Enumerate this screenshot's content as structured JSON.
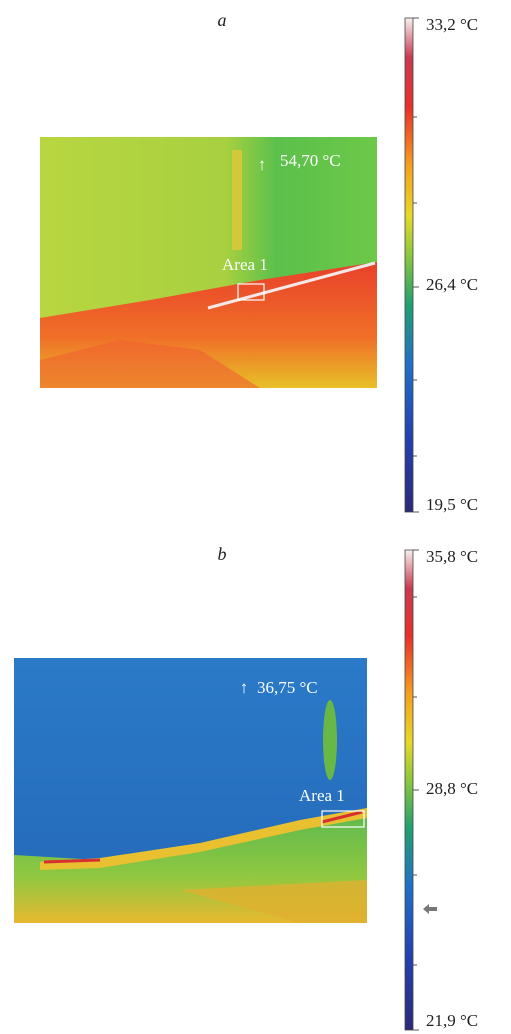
{
  "panels": [
    {
      "label": "a",
      "max_label": "↑",
      "max_temp": "54,70 °C",
      "area_label": "Area 1",
      "scale": {
        "top": "33,2 °C",
        "middle": "26,4 °C",
        "bottom": "19,5 °C"
      }
    },
    {
      "label": "b",
      "max_label": "↑",
      "max_temp": "36,75 °C",
      "area_label": "Area 1",
      "scale": {
        "top": "35,8 °C",
        "middle": "28,8 °C",
        "bottom": "21,9 °C"
      }
    }
  ]
}
